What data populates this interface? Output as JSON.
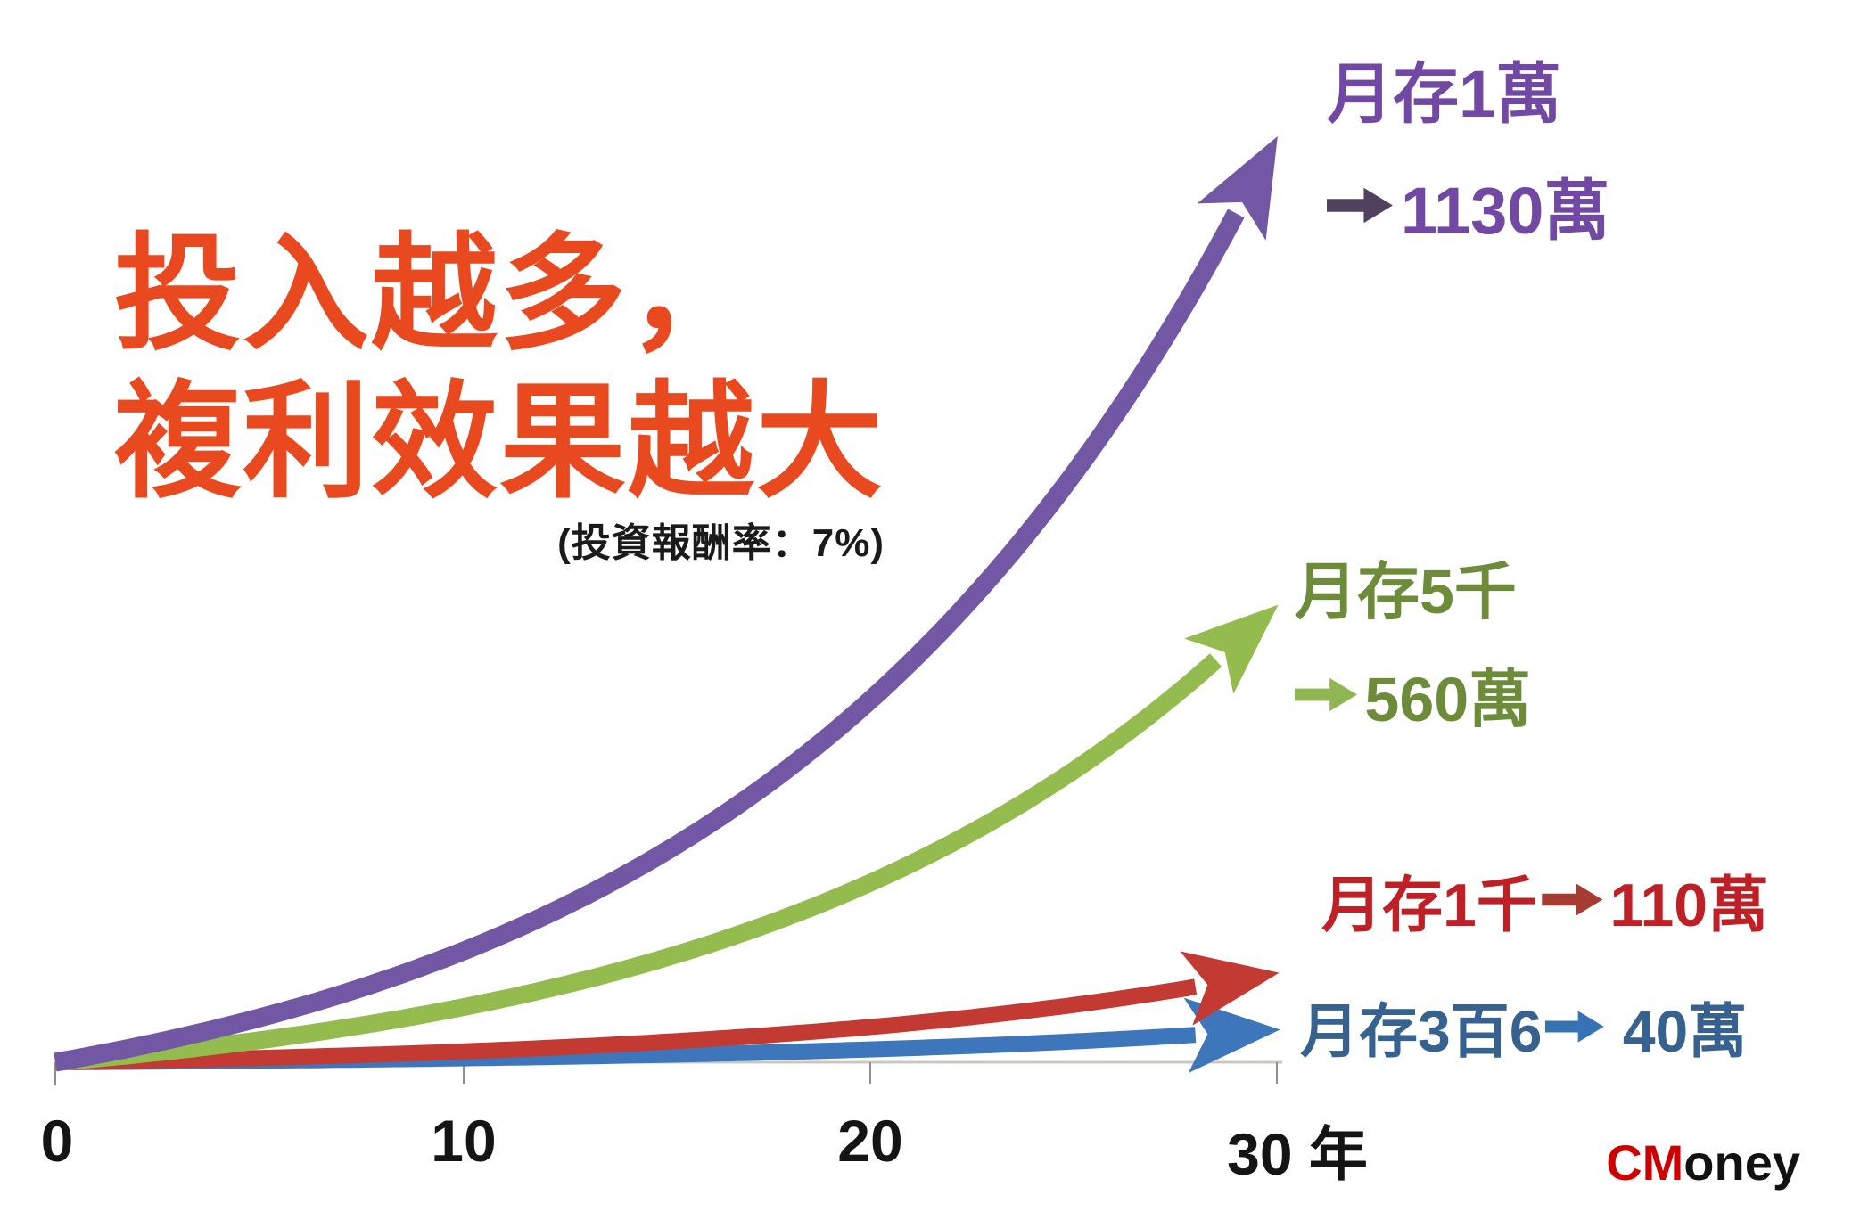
{
  "title": {
    "line1": "投入越多，",
    "line2": "複利效果越大",
    "subtitle": "(投資報酬率：7%)",
    "color": "#E8491F"
  },
  "x_axis": {
    "tick_labels": [
      "0",
      "10",
      "20",
      "30 年"
    ]
  },
  "watermark": {
    "part1": "CM",
    "part1_color": "#CC0000",
    "part2": "oney",
    "part2_color": "#111111"
  },
  "chart_data": {
    "type": "line",
    "title": "投入越多，複利效果越大",
    "subtitle": "(投資報酬率：7%)",
    "xlabel": "年",
    "x_ticks": [
      0,
      10,
      20,
      30
    ],
    "x_range": [
      0,
      30
    ],
    "y_unit": "萬",
    "assumed_annual_return": 0.07,
    "curve_shape": "compound-interest-growth",
    "grid": false,
    "legend_position": "end-of-line-annotations",
    "series": [
      {
        "name": "月存1萬",
        "final_label": "1130萬",
        "final_value_wan": 1130,
        "approx_values_at_x_ticks_wan": [
          0,
          166,
          490,
          1130
        ],
        "color": "#7257A5",
        "label_color": "#7149A5",
        "arrow_color": "#51415F"
      },
      {
        "name": "月存5千",
        "final_label": "560萬",
        "final_value_wan": 560,
        "approx_values_at_x_ticks_wan": [
          0,
          82,
          243,
          560
        ],
        "color": "#93BB4E",
        "label_color": "#6D8C3A",
        "arrow_color": "#8FB653"
      },
      {
        "name": "月存1千",
        "final_label": "110萬",
        "final_value_wan": 110,
        "approx_values_at_x_ticks_wan": [
          0,
          16,
          48,
          110
        ],
        "color": "#C23A31",
        "label_color": "#BE2026",
        "arrow_color": "#A63C31"
      },
      {
        "name": "月存3百6",
        "final_label": "40萬",
        "final_value_wan": 40,
        "approx_values_at_x_ticks_wan": [
          0,
          6,
          17,
          40
        ],
        "color": "#3E76BC",
        "label_color": "#37618E",
        "arrow_color": "#3673B5"
      }
    ]
  }
}
